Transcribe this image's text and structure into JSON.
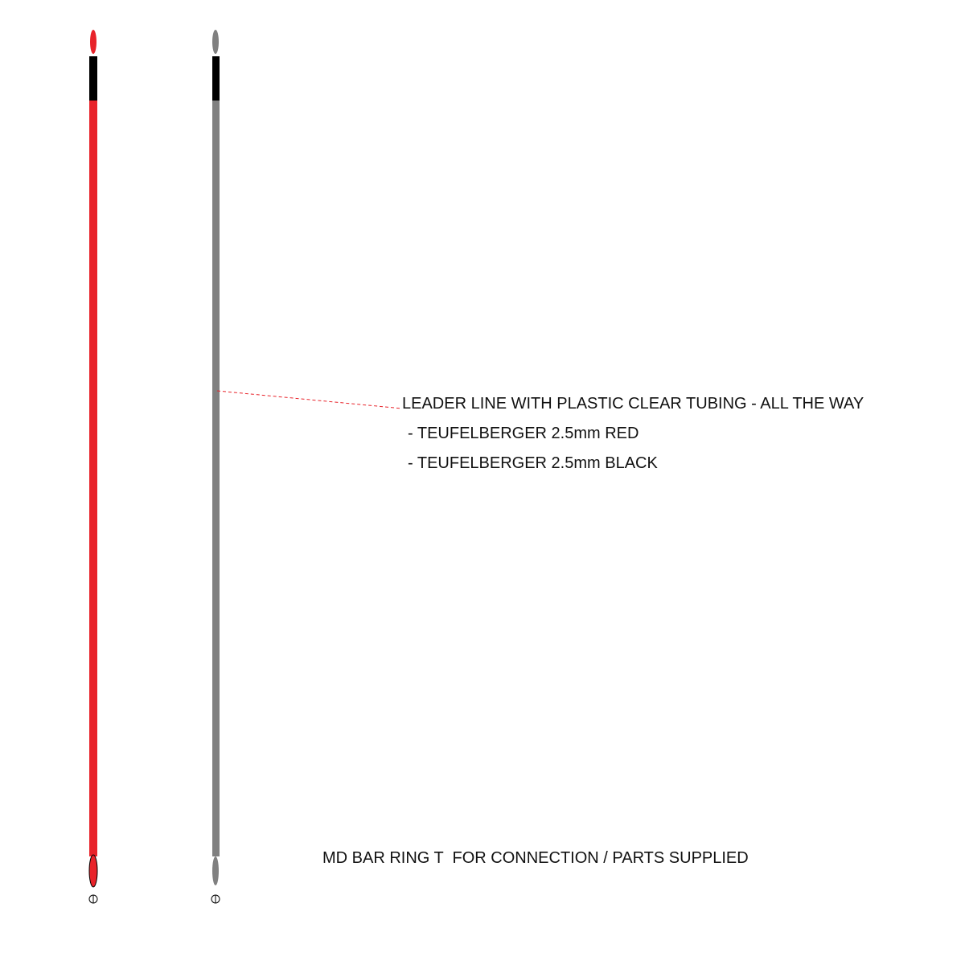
{
  "annotations": {
    "leader": "LEADER LINE WITH PLASTIC CLEAR TUBING - ALL THE WAY",
    "items": [
      "- TEUFELBERGER 2.5mm RED",
      "- TEUFELBERGER 2.5mm BLACK"
    ],
    "footer": "MD BAR RING T  FOR CONNECTION / PARTS SUPPLIED"
  }
}
